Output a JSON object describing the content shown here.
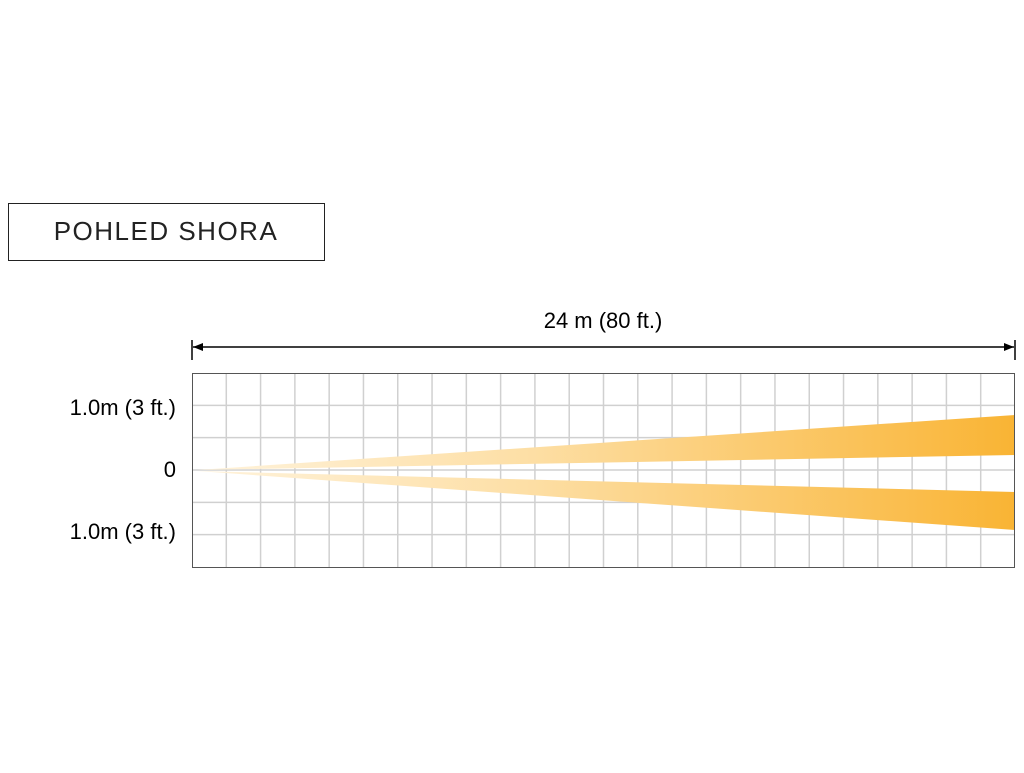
{
  "header": {
    "title": "POHLED SHORA"
  },
  "dimension": {
    "label": "24 m (80 ft.)"
  },
  "axis_labels": [
    "1.0m (3 ft.)",
    "0",
    "1.0m (3 ft.)"
  ]
}
